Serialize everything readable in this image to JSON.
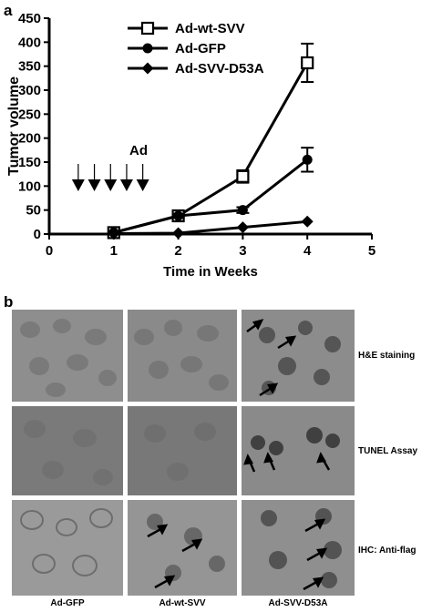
{
  "panel_a_letter": "a",
  "panel_b_letter": "b",
  "chart_data": {
    "type": "line",
    "xlabel": "Time in Weeks",
    "ylabel": "Tumor volume",
    "xlim": [
      0,
      5
    ],
    "ylim": [
      0,
      450
    ],
    "x_ticks": [
      "0",
      "1",
      "2",
      "3",
      "4",
      "5"
    ],
    "y_ticks": [
      "0",
      "50",
      "100",
      "150",
      "200",
      "250",
      "300",
      "350",
      "400",
      "450"
    ],
    "x": [
      1,
      2,
      3,
      4
    ],
    "series": [
      {
        "name": "Ad-wt-SVV",
        "marker": "open-square",
        "values": [
          3,
          38,
          120,
          357
        ],
        "errors": [
          2,
          5,
          13,
          40
        ]
      },
      {
        "name": "Ad-GFP",
        "marker": "filled-circle",
        "values": [
          3,
          38,
          50,
          155
        ],
        "errors": [
          2,
          4,
          6,
          25
        ]
      },
      {
        "name": "Ad-SVV-D53A",
        "marker": "filled-diamond",
        "values": [
          1,
          2,
          14,
          26
        ],
        "errors": [
          0,
          0,
          2,
          3
        ]
      }
    ],
    "annotation": {
      "text": "Ad",
      "arrow_times": [
        0.45,
        0.7,
        0.95,
        1.2,
        1.45
      ]
    },
    "legend_position": "top-center",
    "grid": false
  },
  "micrographs": {
    "columns": [
      "Ad-GFP",
      "Ad-wt-SVV",
      "Ad-SVV-D53A"
    ],
    "rows": [
      "H&E staining",
      "TUNEL Assay",
      "IHC: Anti-flag"
    ]
  }
}
